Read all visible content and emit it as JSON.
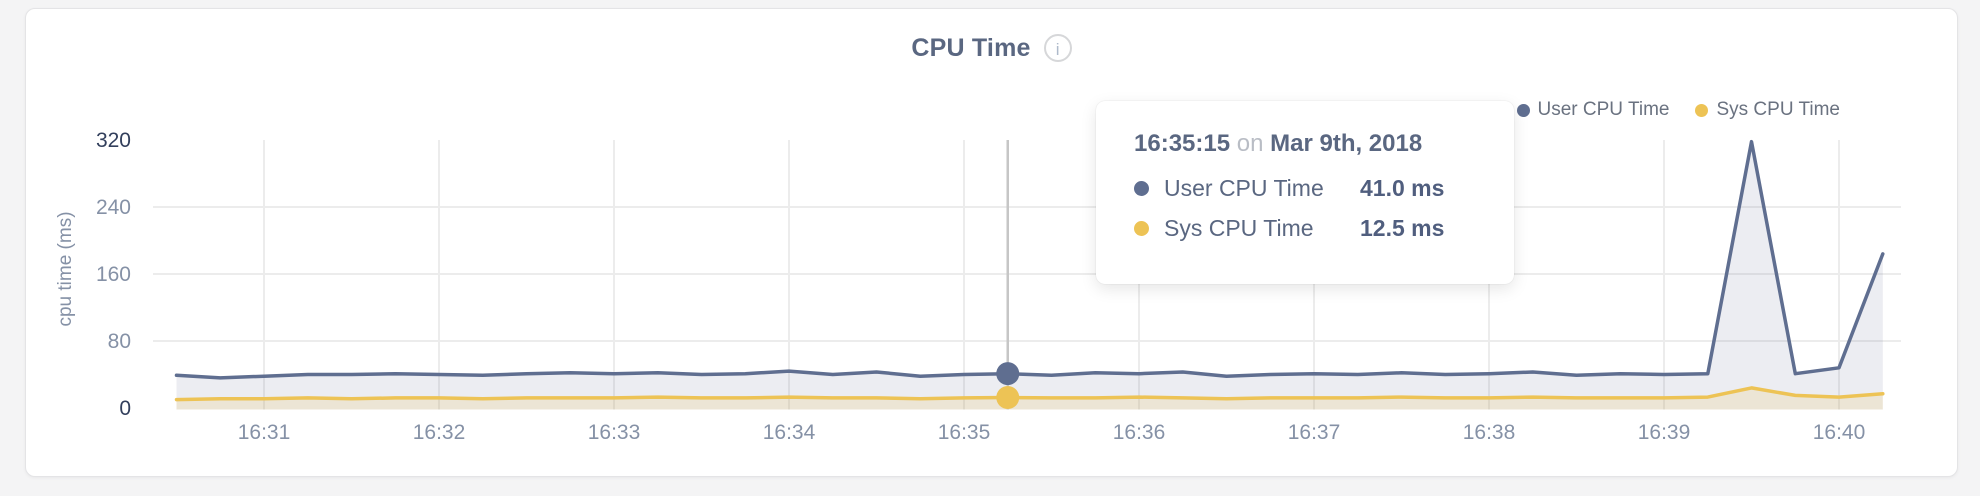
{
  "page": {
    "background": "#f4f4f5",
    "card_background": "#ffffff"
  },
  "header": {
    "title": "CPU Time",
    "info_glyph": "i"
  },
  "legend": [
    {
      "label": "User CPU Time",
      "color": "#5f6e90"
    },
    {
      "label": "Sys CPU Time",
      "color": "#edc355"
    }
  ],
  "tooltip": {
    "time": "16:35:15",
    "connector": "on",
    "date": "Mar 9th, 2018",
    "rows": [
      {
        "label": "User CPU Time",
        "value": "41.0 ms",
        "color": "#5f6e90"
      },
      {
        "label": "Sys CPU Time",
        "value": "12.5 ms",
        "color": "#edc355"
      }
    ]
  },
  "chart_data": {
    "type": "area",
    "title": "CPU Time",
    "xlabel": "",
    "ylabel": "cpu time (ms)",
    "ylim": [
      0,
      320
    ],
    "y_ticks": [
      0,
      80,
      160,
      240,
      320
    ],
    "x_ticks": [
      "16:31",
      "16:32",
      "16:33",
      "16:34",
      "16:35",
      "16:36",
      "16:37",
      "16:38",
      "16:39",
      "16:40"
    ],
    "grid": true,
    "legend_position": "top-right",
    "date": "Mar 9th, 2018",
    "x": [
      "16:30:30",
      "16:30:45",
      "16:31:00",
      "16:31:15",
      "16:31:30",
      "16:31:45",
      "16:32:00",
      "16:32:15",
      "16:32:30",
      "16:32:45",
      "16:33:00",
      "16:33:15",
      "16:33:30",
      "16:33:45",
      "16:34:00",
      "16:34:15",
      "16:34:30",
      "16:34:45",
      "16:35:00",
      "16:35:15",
      "16:35:30",
      "16:35:45",
      "16:36:00",
      "16:36:15",
      "16:36:30",
      "16:36:45",
      "16:37:00",
      "16:37:15",
      "16:37:30",
      "16:37:45",
      "16:38:00",
      "16:38:15",
      "16:38:30",
      "16:38:45",
      "16:39:00",
      "16:39:15",
      "16:39:30",
      "16:39:45",
      "16:40:00",
      "16:40:15"
    ],
    "series": [
      {
        "name": "User CPU Time",
        "color": "#5f6e90",
        "fill": "rgba(95,110,144,0.12)",
        "values": [
          39,
          36,
          38,
          40,
          40,
          41,
          40,
          39,
          41,
          42,
          41,
          42,
          40,
          41,
          44,
          40,
          43,
          38,
          40,
          41,
          39,
          42,
          41,
          43,
          38,
          40,
          41,
          40,
          42,
          40,
          41,
          43,
          39,
          41,
          40,
          41,
          318,
          41,
          48,
          184
        ]
      },
      {
        "name": "Sys CPU Time",
        "color": "#edc355",
        "fill": "rgba(237,195,85,0.18)",
        "values": [
          10,
          11,
          11,
          12,
          11,
          12,
          12,
          11,
          12,
          12,
          12,
          13,
          12,
          12,
          13,
          12,
          12,
          11,
          12,
          12.5,
          12,
          12,
          13,
          12,
          11,
          12,
          12,
          12,
          13,
          12,
          12,
          13,
          12,
          12,
          12,
          13,
          24,
          15,
          13,
          17
        ]
      }
    ],
    "hover": {
      "x": "16:35:15",
      "index": 19,
      "values": [
        {
          "name": "User CPU Time",
          "value": 41.0
        },
        {
          "name": "Sys CPU Time",
          "value": 12.5
        }
      ]
    },
    "axis_colors": {
      "tick": "#8591a6",
      "bound_tick": "#323f5c",
      "grid": "#ececec",
      "crosshair": "#c6c6c6"
    }
  }
}
